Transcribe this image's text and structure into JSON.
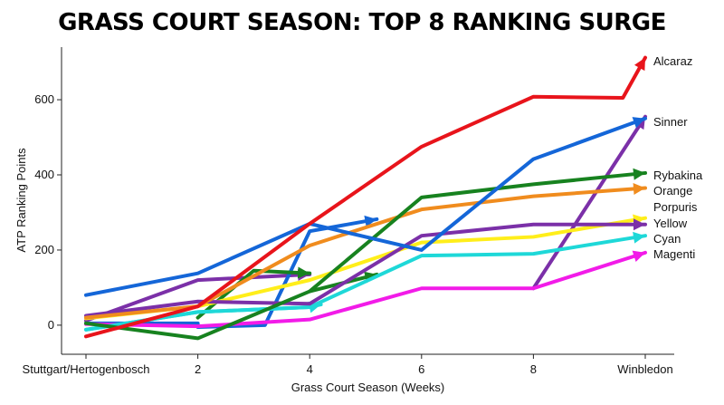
{
  "chart_data": {
    "type": "line",
    "title": "GRASS COURT SEASON: TOP 8 RANKING SURGE",
    "xlabel": "Grass Court Season (Weeks)",
    "ylabel": "ATP Ranking Points",
    "x_tick_labels": [
      "Stuttgart/Hertogenbosch",
      "2",
      "4",
      "6",
      "8",
      "Winbledon"
    ],
    "xlim": [
      0,
      10
    ],
    "ylim": [
      -75,
      740
    ],
    "y_ticks": [
      0,
      200,
      400,
      600
    ],
    "grid": false,
    "legend": "inline-right",
    "series": [
      {
        "name": "Alcaraz",
        "color": "#e8141b",
        "points": [
          [
            0,
            -30
          ],
          [
            2,
            50
          ],
          [
            4,
            270
          ],
          [
            6,
            475
          ],
          [
            8,
            608
          ],
          [
            9.6,
            605
          ],
          [
            10,
            712
          ]
        ]
      },
      {
        "name": "Sinner",
        "color": "#1466d8",
        "points": [
          [
            0,
            80
          ],
          [
            2,
            138
          ],
          [
            4,
            270
          ],
          [
            6,
            200
          ],
          [
            8,
            442
          ],
          [
            10,
            550
          ]
        ]
      },
      {
        "name": "Rybakina",
        "color": "#17821f",
        "points": [
          [
            0,
            5
          ],
          [
            2,
            -35
          ],
          [
            4,
            90
          ],
          [
            6,
            340
          ],
          [
            8,
            375
          ],
          [
            10,
            405
          ]
        ]
      },
      {
        "name": "Orange",
        "color": "#f08c1e",
        "points": [
          [
            0,
            20
          ],
          [
            2,
            50
          ],
          [
            4,
            212
          ],
          [
            6,
            308
          ],
          [
            8,
            343
          ],
          [
            10,
            365
          ]
        ]
      },
      {
        "name": "Porpuris",
        "color": "#7b30a8",
        "points": [
          [
            0,
            25
          ],
          [
            2,
            63
          ],
          [
            4,
            57
          ],
          [
            6,
            238
          ],
          [
            8,
            268
          ],
          [
            10,
            268
          ]
        ]
      },
      {
        "name": "Yellow",
        "color": "#ffee1a",
        "points": [
          [
            0,
            18
          ],
          [
            2,
            50
          ],
          [
            4,
            120
          ],
          [
            6,
            220
          ],
          [
            8,
            235
          ],
          [
            10,
            285
          ]
        ]
      },
      {
        "name": "Cyan",
        "color": "#1ed8d8",
        "points": [
          [
            0,
            -12
          ],
          [
            2,
            35
          ],
          [
            4,
            48
          ],
          [
            6,
            185
          ],
          [
            8,
            190
          ],
          [
            10,
            238
          ]
        ]
      },
      {
        "name": "Magenti",
        "color": "#f21be8",
        "points": [
          [
            0,
            3
          ],
          [
            2,
            -3
          ],
          [
            4,
            15
          ],
          [
            6,
            98
          ],
          [
            8,
            98
          ],
          [
            10,
            193
          ]
        ]
      }
    ],
    "extra_segments": [
      {
        "color": "#7b30a8",
        "points": [
          [
            0,
            12
          ],
          [
            2,
            120
          ],
          [
            4,
            135
          ]
        ]
      },
      {
        "color": "#7b30a8",
        "points": [
          [
            8,
            98
          ],
          [
            10,
            555
          ]
        ]
      },
      {
        "color": "#1466d8",
        "points": [
          [
            0,
            5
          ],
          [
            2,
            5
          ],
          [
            2,
            -5
          ],
          [
            3.2,
            0
          ],
          [
            4,
            250
          ],
          [
            5.2,
            282
          ]
        ]
      },
      {
        "color": "#17821f",
        "points": [
          [
            2,
            20
          ],
          [
            3,
            145
          ],
          [
            4,
            138
          ]
        ]
      },
      {
        "color": "#17821f",
        "points": [
          [
            4,
            90
          ],
          [
            5.2,
            135
          ]
        ]
      },
      {
        "color": "#1ed8d8",
        "points": [
          [
            0,
            -12
          ],
          [
            2,
            35
          ],
          [
            4,
            48
          ],
          [
            4.2,
            55
          ]
        ]
      }
    ]
  }
}
